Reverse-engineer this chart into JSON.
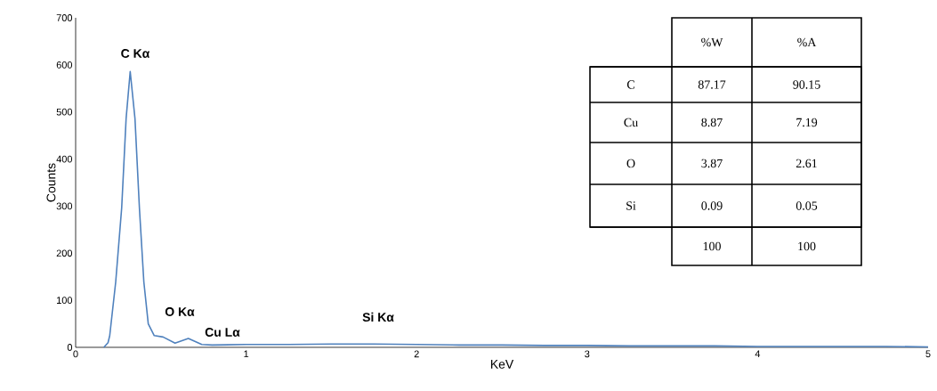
{
  "chart_data": {
    "type": "line",
    "xlabel": "KeV",
    "ylabel": "Counts",
    "x": [
      0.165,
      0.19,
      0.2,
      0.235,
      0.27,
      0.296,
      0.32,
      0.348,
      0.374,
      0.4,
      0.426,
      0.461,
      0.513,
      0.583,
      0.661,
      0.74,
      0.8,
      1.0,
      1.25,
      1.5,
      1.75,
      2.0,
      2.25,
      2.5,
      2.75,
      3.0,
      3.25,
      3.5,
      3.75,
      4.0,
      4.25,
      4.5,
      4.75,
      5.0
    ],
    "series": [
      {
        "color": "#4f81bd",
        "values": [
          0,
          10,
          25,
          139,
          296,
          486,
          586,
          486,
          296,
          139,
          50,
          25,
          22,
          9,
          19,
          6,
          5,
          6,
          6,
          7,
          7,
          6,
          5,
          5,
          4,
          4,
          3,
          3,
          3,
          2,
          2,
          2,
          2,
          1
        ]
      }
    ],
    "xlim": [
      0,
      5
    ],
    "ylim": [
      0,
      700
    ],
    "xticks": [
      0,
      1,
      2,
      3,
      4,
      5
    ],
    "yticks": [
      0,
      100,
      200,
      300,
      400,
      500,
      600,
      700
    ],
    "grid": false,
    "marker": "none",
    "line_style": "solid",
    "annotations": [
      "C Kα",
      "O Kα",
      "Cu Lα",
      "Si Kα",
      "%W",
      "%A",
      "C",
      "87.17",
      "90.15",
      "Cu",
      "8.87",
      "7.19",
      "O",
      "3.87",
      "2.61",
      "Si",
      "0.09",
      "0.05",
      "100",
      "100"
    ]
  }
}
